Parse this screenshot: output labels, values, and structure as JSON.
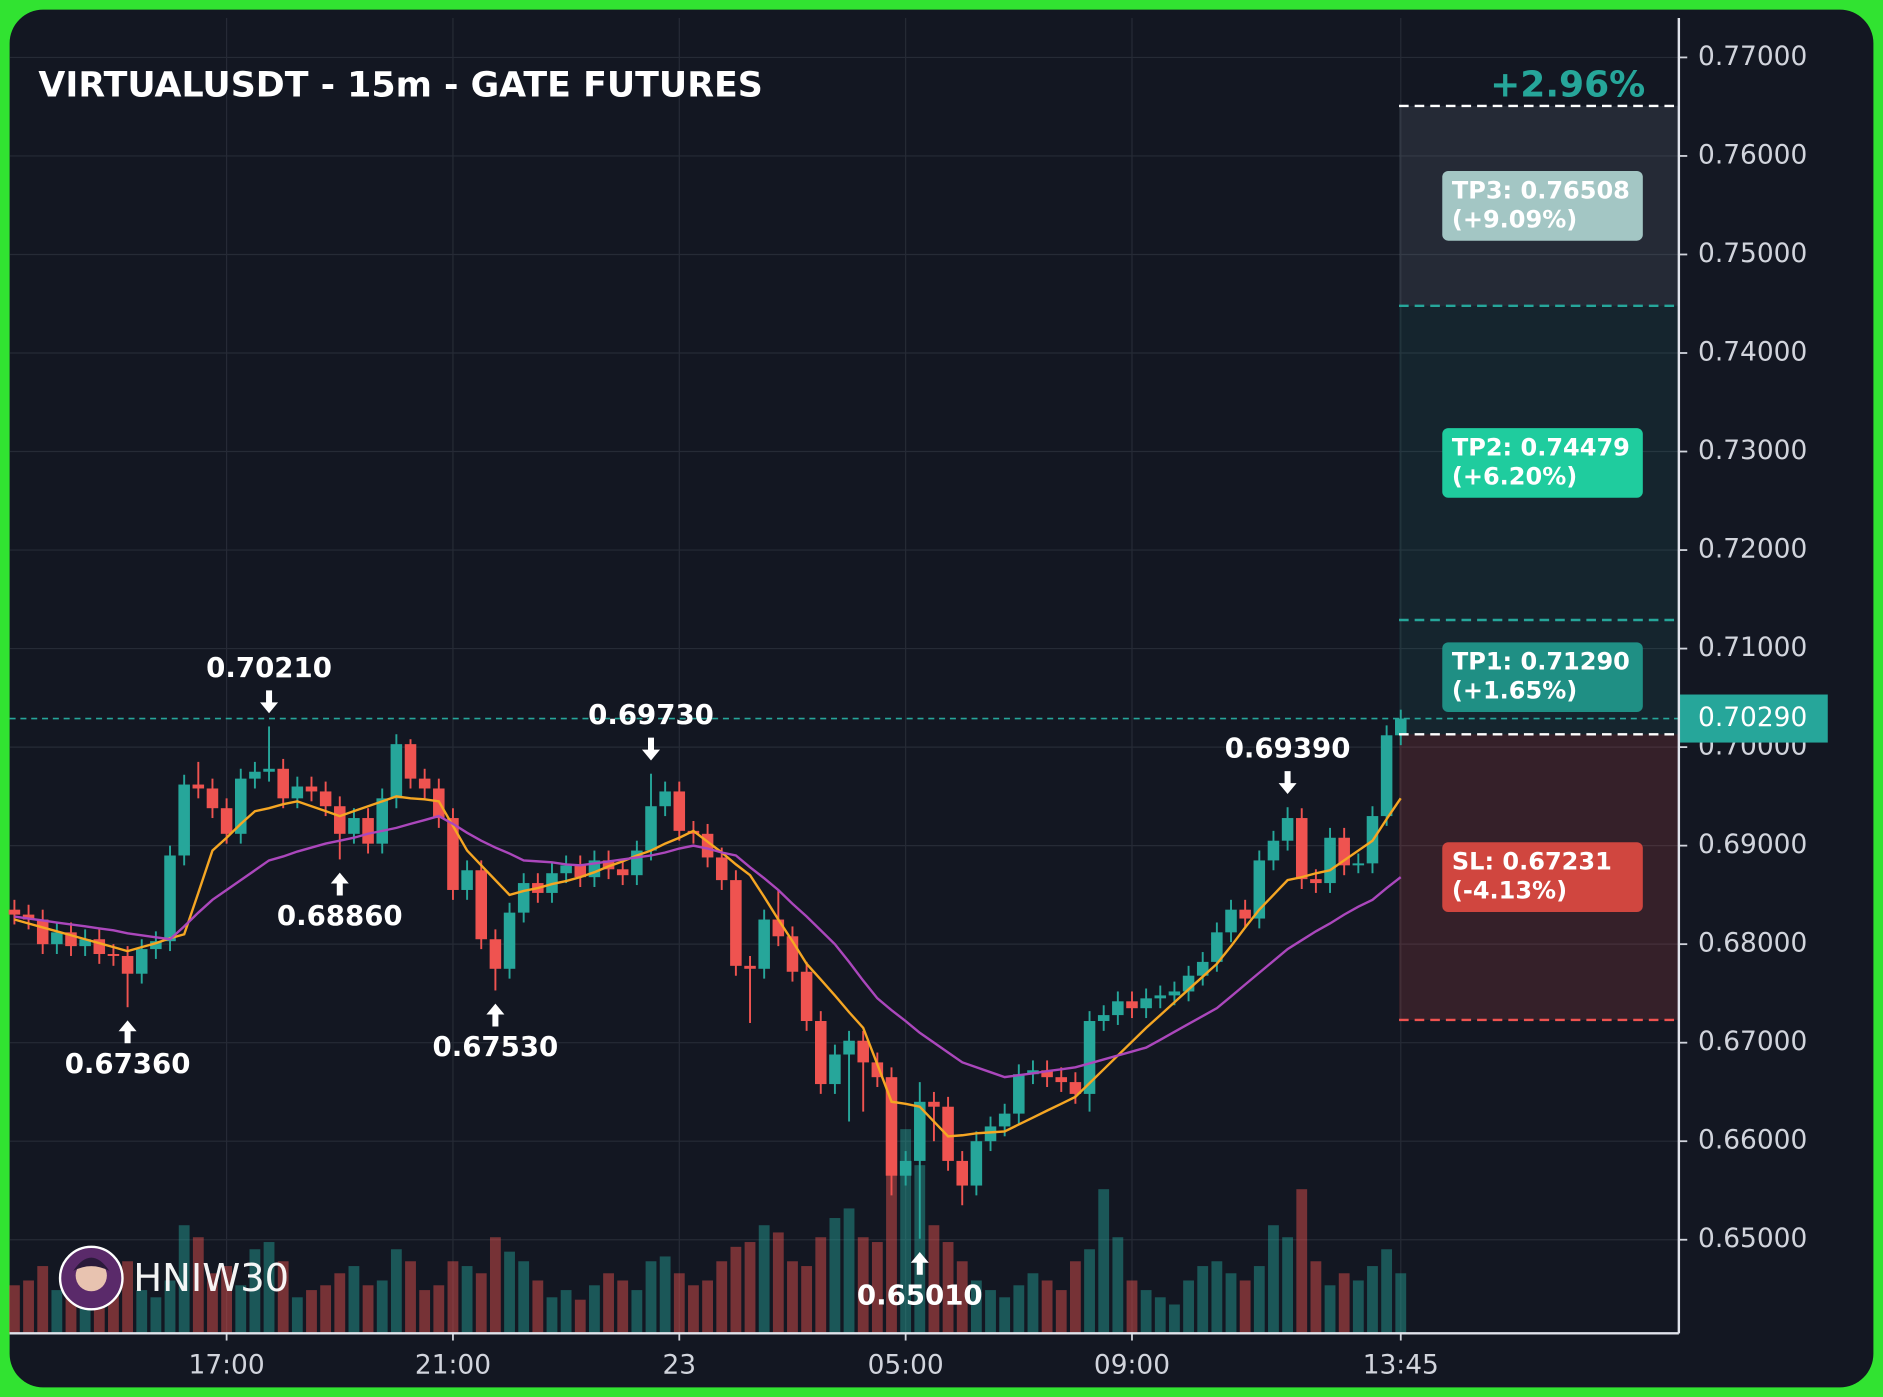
{
  "chart_data": {
    "type": "candlestick",
    "title": "VIRTUALUSDT - 15m - GATE FUTURES",
    "change_label": "+2.96%",
    "watermark": "HNIW30",
    "up_color": "#26a69a",
    "down_color": "#ef5350",
    "categories": [
      null,
      null,
      null,
      null,
      null,
      null,
      null,
      null,
      null,
      null,
      null,
      null,
      null,
      null,
      null,
      "17:00",
      null,
      null,
      null,
      null,
      null,
      null,
      null,
      null,
      null,
      null,
      null,
      null,
      null,
      null,
      null,
      "21:00",
      null,
      null,
      null,
      null,
      null,
      null,
      null,
      null,
      null,
      null,
      null,
      null,
      null,
      null,
      null,
      "23",
      null,
      null,
      null,
      null,
      null,
      null,
      null,
      null,
      null,
      null,
      null,
      null,
      null,
      null,
      null,
      "05:00",
      null,
      null,
      null,
      null,
      null,
      null,
      null,
      null,
      null,
      null,
      null,
      null,
      null,
      null,
      null,
      "09:00",
      null,
      null,
      null,
      null,
      null,
      null,
      null,
      null,
      null,
      null,
      null,
      null,
      null,
      null,
      null,
      null,
      null,
      null,
      "13:45"
    ],
    "open": [
      0.6835,
      0.683,
      0.6825,
      0.68,
      0.6812,
      0.6798,
      0.6805,
      0.679,
      0.6788,
      0.677,
      0.6795,
      0.6803,
      0.689,
      0.6962,
      0.6958,
      0.6938,
      0.6912,
      0.6968,
      0.6975,
      0.6978,
      0.6948,
      0.696,
      0.6955,
      0.694,
      0.6912,
      0.6928,
      0.6902,
      0.6948,
      0.7003,
      0.6968,
      0.6958,
      0.6928,
      0.6855,
      0.6875,
      0.6805,
      0.6775,
      0.6832,
      0.6862,
      0.6852,
      0.6872,
      0.688,
      0.6868,
      0.6885,
      0.6876,
      0.687,
      0.6895,
      0.694,
      0.6955,
      0.6915,
      0.6912,
      0.6888,
      0.6865,
      0.6778,
      0.6775,
      0.6825,
      0.6808,
      0.6772,
      0.6722,
      0.6658,
      0.6688,
      0.6702,
      0.668,
      0.6665,
      0.6565,
      0.658,
      0.664,
      0.6635,
      0.658,
      0.6555,
      0.66,
      0.6615,
      0.6628,
      0.6668,
      0.6672,
      0.6665,
      0.666,
      0.6648,
      0.6722,
      0.6728,
      0.6742,
      0.6735,
      0.6745,
      0.6748,
      0.6752,
      0.6768,
      0.6782,
      0.6812,
      0.6835,
      0.6826,
      0.6885,
      0.6905,
      0.6928,
      0.6866,
      0.6862,
      0.6908,
      0.688,
      0.6882,
      0.693,
      0.7012
    ],
    "high": [
      0.6845,
      0.684,
      0.6835,
      0.6822,
      0.6822,
      0.6815,
      0.6815,
      0.68,
      0.6798,
      0.6805,
      0.6813,
      0.69,
      0.6972,
      0.6985,
      0.6968,
      0.6948,
      0.6978,
      0.6985,
      0.7021,
      0.6988,
      0.697,
      0.697,
      0.6965,
      0.695,
      0.6938,
      0.6938,
      0.6958,
      0.7013,
      0.7008,
      0.6978,
      0.6968,
      0.6938,
      0.6885,
      0.6885,
      0.6815,
      0.6842,
      0.6872,
      0.6872,
      0.6882,
      0.689,
      0.689,
      0.6895,
      0.6895,
      0.6886,
      0.6905,
      0.6973,
      0.6965,
      0.6965,
      0.6925,
      0.6922,
      0.6898,
      0.6875,
      0.6788,
      0.6835,
      0.6855,
      0.6818,
      0.6782,
      0.6732,
      0.6698,
      0.6712,
      0.6712,
      0.669,
      0.6675,
      0.659,
      0.666,
      0.665,
      0.6645,
      0.659,
      0.661,
      0.6625,
      0.6638,
      0.6678,
      0.6682,
      0.6682,
      0.6675,
      0.667,
      0.6732,
      0.6738,
      0.6752,
      0.6752,
      0.6755,
      0.6758,
      0.6762,
      0.6778,
      0.6792,
      0.6822,
      0.6845,
      0.6845,
      0.6895,
      0.6915,
      0.6939,
      0.6938,
      0.6876,
      0.6918,
      0.6918,
      0.6892,
      0.694,
      0.7022,
      0.7038
    ],
    "low": [
      0.682,
      0.6815,
      0.679,
      0.679,
      0.6788,
      0.6788,
      0.678,
      0.6778,
      0.6736,
      0.676,
      0.6785,
      0.6793,
      0.688,
      0.6948,
      0.6928,
      0.6902,
      0.6902,
      0.6958,
      0.6965,
      0.6938,
      0.6938,
      0.6945,
      0.693,
      0.6886,
      0.6902,
      0.6892,
      0.6892,
      0.6938,
      0.6958,
      0.6948,
      0.6918,
      0.6845,
      0.6845,
      0.6795,
      0.6753,
      0.6765,
      0.6822,
      0.6842,
      0.6842,
      0.6862,
      0.6858,
      0.6858,
      0.6866,
      0.686,
      0.686,
      0.6885,
      0.693,
      0.6905,
      0.6902,
      0.6878,
      0.6855,
      0.6768,
      0.672,
      0.6765,
      0.6798,
      0.6762,
      0.6712,
      0.6648,
      0.6648,
      0.662,
      0.663,
      0.6655,
      0.6545,
      0.6555,
      0.6501,
      0.66,
      0.657,
      0.6535,
      0.6545,
      0.659,
      0.6605,
      0.6618,
      0.6658,
      0.6655,
      0.665,
      0.6638,
      0.663,
      0.6712,
      0.6718,
      0.6725,
      0.6725,
      0.6735,
      0.6738,
      0.6742,
      0.6758,
      0.6772,
      0.6802,
      0.6816,
      0.6816,
      0.6875,
      0.6895,
      0.6856,
      0.6852,
      0.6852,
      0.687,
      0.6872,
      0.6872,
      0.692,
      0.7002
    ],
    "close": [
      0.683,
      0.6825,
      0.68,
      0.6812,
      0.6798,
      0.6805,
      0.679,
      0.6788,
      0.677,
      0.6795,
      0.6803,
      0.689,
      0.6962,
      0.6958,
      0.6938,
      0.6912,
      0.6968,
      0.6975,
      0.6978,
      0.6948,
      0.696,
      0.6955,
      0.694,
      0.6912,
      0.6928,
      0.6902,
      0.6948,
      0.7003,
      0.6968,
      0.6958,
      0.6928,
      0.6855,
      0.6875,
      0.6805,
      0.6775,
      0.6832,
      0.6862,
      0.6852,
      0.6872,
      0.688,
      0.6868,
      0.6885,
      0.6876,
      0.687,
      0.6895,
      0.694,
      0.6955,
      0.6915,
      0.6912,
      0.6888,
      0.6865,
      0.6778,
      0.6775,
      0.6825,
      0.6808,
      0.6772,
      0.6722,
      0.6658,
      0.6688,
      0.6702,
      0.668,
      0.6665,
      0.6565,
      0.658,
      0.664,
      0.6635,
      0.658,
      0.6555,
      0.66,
      0.6615,
      0.6628,
      0.6668,
      0.6672,
      0.6665,
      0.666,
      0.6648,
      0.6722,
      0.6728,
      0.6742,
      0.6735,
      0.6745,
      0.6748,
      0.6752,
      0.6768,
      0.6782,
      0.6812,
      0.6835,
      0.6826,
      0.6885,
      0.6905,
      0.6928,
      0.6866,
      0.6862,
      0.6908,
      0.688,
      0.6882,
      0.693,
      0.7012,
      0.7029
    ],
    "volume": [
      20,
      22,
      28,
      18,
      25,
      15,
      20,
      22,
      30,
      18,
      15,
      22,
      45,
      40,
      25,
      28,
      20,
      35,
      38,
      30,
      15,
      18,
      20,
      25,
      28,
      20,
      22,
      35,
      30,
      18,
      20,
      30,
      28,
      25,
      40,
      34,
      30,
      22,
      15,
      18,
      14,
      20,
      25,
      22,
      18,
      30,
      32,
      25,
      20,
      22,
      30,
      36,
      38,
      45,
      42,
      30,
      28,
      40,
      48,
      52,
      40,
      38,
      100,
      85,
      70,
      45,
      38,
      30,
      22,
      18,
      15,
      20,
      25,
      22,
      18,
      30,
      35,
      60,
      40,
      22,
      18,
      15,
      12,
      22,
      28,
      30,
      25,
      22,
      28,
      45,
      40,
      60,
      30,
      20,
      25,
      22,
      28,
      35,
      25
    ],
    "ma_lines": [
      {
        "color": "#f5a623",
        "values": [
          0.6825,
          0.6821,
          0.6817,
          0.6813,
          0.6809,
          0.6805,
          0.6801,
          0.6797,
          0.6793,
          0.6797,
          0.6801,
          0.6806,
          0.681,
          0.6852,
          0.6895,
          0.6908,
          0.6922,
          0.6935,
          0.6938,
          0.6942,
          0.6945,
          0.694,
          0.6935,
          0.693,
          0.6935,
          0.694,
          0.6945,
          0.695,
          0.6948,
          0.6947,
          0.6945,
          0.692,
          0.6895,
          0.688,
          0.6865,
          0.685,
          0.6854,
          0.6857,
          0.6861,
          0.6864,
          0.6868,
          0.6873,
          0.6879,
          0.6884,
          0.689,
          0.6895,
          0.6902,
          0.6908,
          0.6915,
          0.6904,
          0.6893,
          0.6881,
          0.687,
          0.6848,
          0.6825,
          0.6803,
          0.678,
          0.6764,
          0.6748,
          0.6731,
          0.6715,
          0.6678,
          0.664,
          0.6638,
          0.6635,
          0.662,
          0.6605,
          0.6606,
          0.6608,
          0.6609,
          0.661,
          0.6617,
          0.6624,
          0.6631,
          0.6638,
          0.6645,
          0.6659,
          0.6673,
          0.6687,
          0.6701,
          0.6715,
          0.6728,
          0.6741,
          0.6754,
          0.6767,
          0.678,
          0.6798,
          0.6817,
          0.6835,
          0.685,
          0.6865,
          0.6868,
          0.6872,
          0.6875,
          0.6885,
          0.6895,
          0.6905,
          0.6927,
          0.6948
        ]
      },
      {
        "color": "#ab47bc",
        "values": [
          0.6828,
          0.6826,
          0.6824,
          0.6822,
          0.682,
          0.6818,
          0.6816,
          0.6814,
          0.6811,
          0.6809,
          0.6807,
          0.6805,
          0.6818,
          0.6832,
          0.6845,
          0.6855,
          0.6865,
          0.6875,
          0.6885,
          0.6889,
          0.6894,
          0.6898,
          0.6902,
          0.6905,
          0.6908,
          0.6912,
          0.6915,
          0.6918,
          0.6922,
          0.6926,
          0.693,
          0.6922,
          0.6913,
          0.6905,
          0.6898,
          0.6892,
          0.6885,
          0.6884,
          0.6883,
          0.6881,
          0.688,
          0.6882,
          0.6884,
          0.6886,
          0.6888,
          0.689,
          0.6893,
          0.6897,
          0.69,
          0.6897,
          0.6893,
          0.689,
          0.6878,
          0.6867,
          0.6855,
          0.6841,
          0.6828,
          0.6814,
          0.68,
          0.6782,
          0.6763,
          0.6745,
          0.6733,
          0.6722,
          0.671,
          0.67,
          0.669,
          0.668,
          0.6675,
          0.667,
          0.6665,
          0.6667,
          0.6669,
          0.6671,
          0.6673,
          0.6675,
          0.6679,
          0.6683,
          0.6687,
          0.6691,
          0.6695,
          0.6703,
          0.6711,
          0.6719,
          0.6727,
          0.6735,
          0.6747,
          0.6759,
          0.6771,
          0.6783,
          0.6795,
          0.6804,
          0.6813,
          0.6821,
          0.683,
          0.6838,
          0.6845,
          0.6857,
          0.6868
        ]
      }
    ],
    "ylim": [
      0.6405,
      0.774
    ],
    "yticks": [
      {
        "value": 0.65,
        "label": "0.65000"
      },
      {
        "value": 0.66,
        "label": "0.66000"
      },
      {
        "value": 0.67,
        "label": "0.67000"
      },
      {
        "value": 0.68,
        "label": "0.68000"
      },
      {
        "value": 0.69,
        "label": "0.69000"
      },
      {
        "value": 0.7,
        "label": "0.70000"
      },
      {
        "value": 0.71,
        "label": "0.71000"
      },
      {
        "value": 0.72,
        "label": "0.72000"
      },
      {
        "value": 0.73,
        "label": "0.73000"
      },
      {
        "value": 0.74,
        "label": "0.74000"
      },
      {
        "value": 0.75,
        "label": "0.75000"
      },
      {
        "value": 0.76,
        "label": "0.76000"
      },
      {
        "value": 0.77,
        "label": "0.77000"
      }
    ],
    "grid": true,
    "last_price": {
      "value": 0.7029,
      "label": "0.70290",
      "color": "#26a69a"
    },
    "entry": {
      "value": 0.7013,
      "color": "#ffffff"
    },
    "levels": [
      {
        "label": "TP1: 0.71290",
        "sub": "(+1.65%)",
        "value": 0.7129,
        "color": "#1f8f84",
        "line_color": "#26a69a",
        "zone_color": "rgba(38,166,154,0.10)"
      },
      {
        "label": "TP2: 0.74479",
        "sub": "(+6.20%)",
        "value": 0.74479,
        "color": "#1fcc9e",
        "line_color": "#26a69a",
        "zone_color": "rgba(38,166,154,0.10)"
      },
      {
        "label": "TP3: 0.76508",
        "sub": "(+9.09%)",
        "value": 0.76508,
        "color": "#a3c6c4",
        "line_color": "#ffffff",
        "zone_color": "rgba(150,160,175,0.14)"
      },
      {
        "label": "SL: 0.67231",
        "sub": "(-4.13%)",
        "value": 0.67231,
        "color": "#d0463f",
        "line_color": "#ef5350",
        "zone_color": "rgba(239,83,80,0.16)"
      }
    ],
    "annotations": [
      {
        "label": "0.67360",
        "value": 0.6736,
        "at": 8,
        "dir": "up"
      },
      {
        "label": "0.70210",
        "value": 0.7021,
        "at": 18,
        "dir": "down"
      },
      {
        "label": "0.68860",
        "value": 0.6886,
        "at": 23,
        "dir": "up"
      },
      {
        "label": "0.67530",
        "value": 0.6753,
        "at": 34,
        "dir": "up"
      },
      {
        "label": "0.69730",
        "value": 0.6973,
        "at": 45,
        "dir": "down"
      },
      {
        "label": "0.65010",
        "value": 0.6501,
        "at": 64,
        "dir": "up"
      },
      {
        "label": "0.69390",
        "value": 0.6939,
        "at": 90,
        "dir": "down"
      }
    ]
  }
}
